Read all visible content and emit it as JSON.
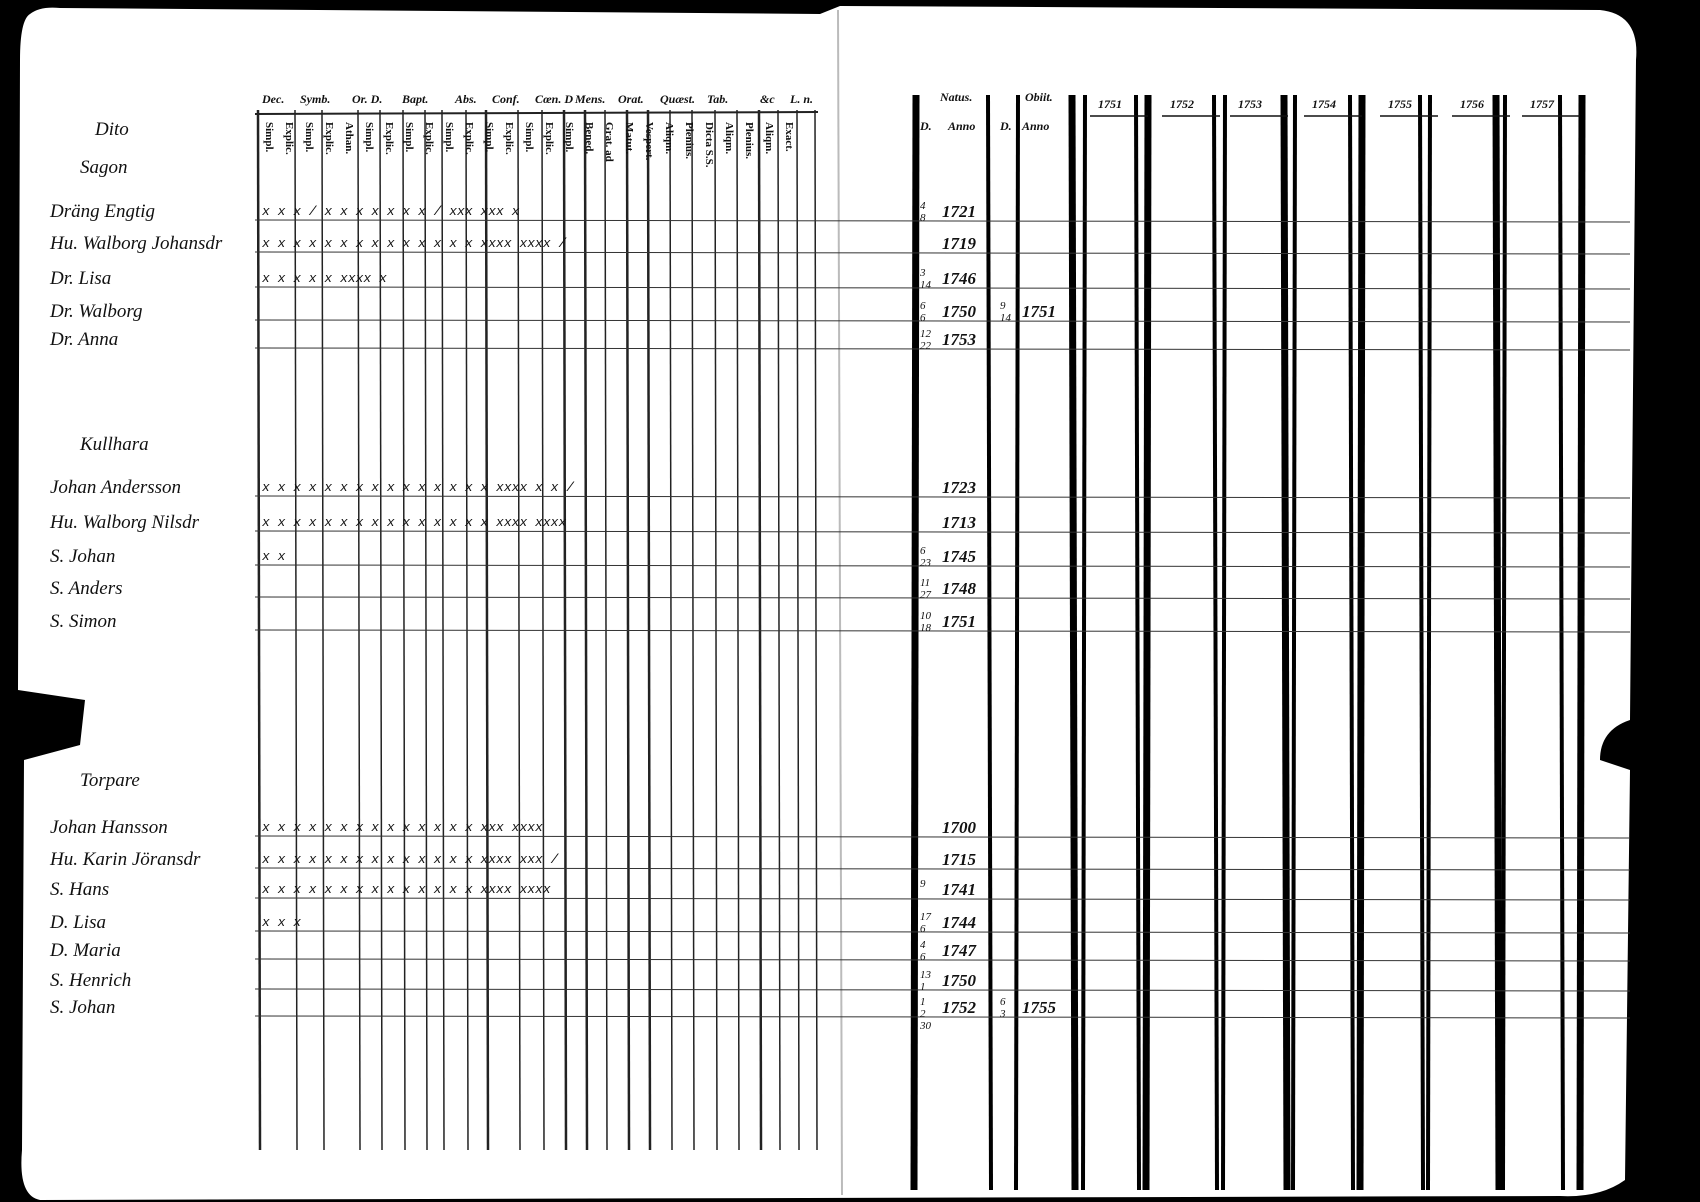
{
  "headings": {
    "left": [
      "Dec.",
      "Symb.",
      "Or. D.",
      "Bapt.",
      "Abs.",
      "Conf.",
      "Cœn. D",
      "Mens.",
      "Orat.",
      "Quæst.",
      "Tab.",
      "&c",
      "L. n."
    ],
    "sub": [
      "Simpl.",
      "Explic.",
      "Simpl.",
      "Explic.",
      "Athan.",
      "Simpl.",
      "Explic.",
      "Simpl.",
      "Explic.",
      "Simpl.",
      "Explic.",
      "Simpl.",
      "Explic.",
      "Simpl.",
      "Explic.",
      "Simpl.",
      "Bened.",
      "Grat. ad",
      "Matut.",
      "Vespert.",
      "Aliqm.",
      "Plenius.",
      "Dicta S.S.",
      "Aliqm.",
      "Plenius.",
      "Aliqm.",
      "Exact."
    ],
    "natus": "Natus.",
    "obiit": "Obiit.",
    "day": "D.",
    "anno": "Anno",
    "day2": "D.",
    "anno2": "Anno",
    "years": [
      "1751",
      "1752",
      "1753",
      "1754",
      "1755",
      "1756",
      "1757"
    ]
  },
  "groups": [
    {
      "title": "Dito",
      "place": "Sagon",
      "people": [
        {
          "name": "Dräng Engtig",
          "marks": "x x  x /   x   x   x   x x x x /  xxx xxx x",
          "day": [
            4,
            8
          ],
          "year": 1721
        },
        {
          "name": "Hu. Walborg Johansdr",
          "marks": "x x  x x  x x x x  x x x x x x  xxxx xxxx /",
          "year": 1719
        },
        {
          "name": "Dr. Lisa",
          "marks": "x   x     x     x          x   xxxx x",
          "day": [
            3,
            14
          ],
          "year": 1746
        },
        {
          "name": "Dr. Walborg",
          "day": [
            6,
            6
          ],
          "year": 1750,
          "death_day": [
            9,
            14
          ],
          "death_year": 1751
        },
        {
          "name": "Dr. Anna",
          "day": [
            12,
            22
          ],
          "year": 1753
        }
      ]
    },
    {
      "place": "Kullhara",
      "people": [
        {
          "name": "Johan Andersson",
          "marks": "x x  x x  x x x x x x x x x x x  xxxx x x /",
          "year": 1723
        },
        {
          "name": "Hu. Walborg Nilsdr",
          "marks": "x x  x x  x x x x x x x x x x x  xxxx xxxx",
          "year": 1713
        },
        {
          "name": "S. Johan",
          "marks": "    x     x",
          "day": [
            6,
            23
          ],
          "year": 1745
        },
        {
          "name": "S. Anders",
          "day": [
            11,
            27
          ],
          "year": 1748
        },
        {
          "name": "S. Simon",
          "day": [
            10,
            18
          ],
          "year": 1751
        }
      ]
    },
    {
      "place": "Torpare",
      "people": [
        {
          "name": "Johan Hansson",
          "marks": "x x  x x  x x x x x x x x x x  xxx xxxx",
          "year": 1700
        },
        {
          "name": "Hu. Karin Jöransdr",
          "marks": "x x  x x  x x x x x x x x x x  xxxx xxx /",
          "year": 1715
        },
        {
          "name": "S. Hans",
          "marks": "x x  x x  x x x x x x x x x x  xxxx xxxx",
          "day": [
            9
          ],
          "year": 1741
        },
        {
          "name": "D. Lisa",
          "marks": "x    x     x",
          "day": [
            17,
            6
          ],
          "year": 1744
        },
        {
          "name": "D. Maria",
          "day": [
            4,
            6
          ],
          "year": 1747
        },
        {
          "name": "S. Henrich",
          "day": [
            13,
            1
          ],
          "year": 1750
        },
        {
          "name": "S. Johan",
          "day": [
            1,
            2,
            30
          ],
          "year": 1752,
          "death_day": [
            6,
            3
          ],
          "death_year": 1755
        }
      ]
    }
  ]
}
